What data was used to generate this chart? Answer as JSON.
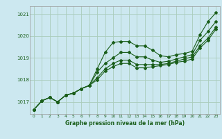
{
  "title": "Graphe pression niveau de la mer (hPa)",
  "background_color": "#cce8f0",
  "grid_color": "#aaccbb",
  "line_color": "#1a5e1a",
  "xlim": [
    -0.5,
    23.5
  ],
  "ylim": [
    1016.45,
    1021.35
  ],
  "yticks": [
    1017,
    1018,
    1019,
    1020,
    1021
  ],
  "xticks": [
    0,
    1,
    2,
    3,
    4,
    5,
    6,
    7,
    8,
    9,
    10,
    11,
    12,
    13,
    14,
    15,
    16,
    17,
    18,
    19,
    20,
    21,
    22,
    23
  ],
  "series": [
    [
      1016.65,
      1017.05,
      1017.2,
      1017.0,
      1017.3,
      1017.4,
      1017.6,
      1017.75,
      1018.5,
      1019.25,
      1019.7,
      1019.75,
      1019.75,
      1019.55,
      1019.55,
      1019.35,
      1019.1,
      1019.05,
      1019.15,
      1019.2,
      1019.3,
      1020.05,
      1020.65,
      1021.05
    ],
    [
      1016.65,
      1017.05,
      1017.2,
      1017.0,
      1017.3,
      1017.4,
      1017.6,
      1017.75,
      1018.35,
      1018.75,
      1019.0,
      1019.25,
      1019.25,
      1019.05,
      1019.05,
      1018.9,
      1018.8,
      1018.85,
      1018.95,
      1019.05,
      1019.15,
      1019.8,
      1020.2,
      1020.65
    ],
    [
      1016.65,
      1017.05,
      1017.2,
      1017.0,
      1017.3,
      1017.4,
      1017.6,
      1017.75,
      1018.1,
      1018.5,
      1018.75,
      1018.9,
      1018.9,
      1018.7,
      1018.7,
      1018.7,
      1018.7,
      1018.75,
      1018.85,
      1018.95,
      1019.05,
      1019.55,
      1019.9,
      1020.4
    ],
    [
      1016.65,
      1017.05,
      1017.2,
      1017.0,
      1017.3,
      1017.4,
      1017.6,
      1017.75,
      1018.0,
      1018.4,
      1018.6,
      1018.75,
      1018.75,
      1018.55,
      1018.55,
      1018.6,
      1018.65,
      1018.7,
      1018.8,
      1018.85,
      1018.95,
      1019.45,
      1019.8,
      1020.3
    ]
  ]
}
